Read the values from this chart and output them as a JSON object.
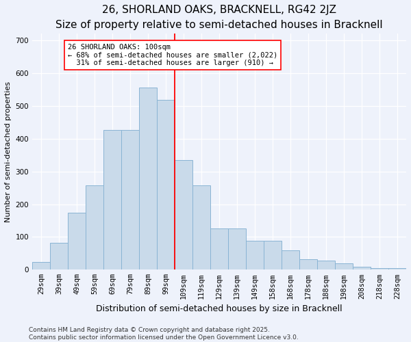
{
  "title1": "26, SHORLAND OAKS, BRACKNELL, RG42 2JZ",
  "title2": "Size of property relative to semi-detached houses in Bracknell",
  "xlabel": "Distribution of semi-detached houses by size in Bracknell",
  "ylabel": "Number of semi-detached properties",
  "categories": [
    "29sqm",
    "39sqm",
    "49sqm",
    "59sqm",
    "69sqm",
    "79sqm",
    "89sqm",
    "99sqm",
    "109sqm",
    "119sqm",
    "129sqm",
    "139sqm",
    "149sqm",
    "158sqm",
    "168sqm",
    "178sqm",
    "188sqm",
    "198sqm",
    "208sqm",
    "218sqm",
    "228sqm"
  ],
  "values": [
    23,
    83,
    175,
    257,
    427,
    427,
    557,
    519,
    335,
    257,
    126,
    126,
    88,
    88,
    60,
    33,
    27,
    20,
    10,
    5,
    5
  ],
  "bar_color": "#c9daea",
  "bar_edge_color": "#8ab4d4",
  "vline_color": "red",
  "vline_x_index": 7,
  "annotation_line1": "26 SHORLAND OAKS: 100sqm",
  "annotation_line2": "← 68% of semi-detached houses are smaller (2,022)",
  "annotation_line3": "  31% of semi-detached houses are larger (910) →",
  "annotation_box_color": "white",
  "annotation_box_edge": "red",
  "footer1": "Contains HM Land Registry data © Crown copyright and database right 2025.",
  "footer2": "Contains public sector information licensed under the Open Government Licence v3.0.",
  "bg_color": "#eef2fb",
  "ylim": [
    0,
    720
  ],
  "yticks": [
    0,
    100,
    200,
    300,
    400,
    500,
    600,
    700
  ],
  "title1_fontsize": 11,
  "title2_fontsize": 9.5,
  "xlabel_fontsize": 9,
  "ylabel_fontsize": 8,
  "tick_fontsize": 7.5,
  "annot_fontsize": 7.5,
  "footer_fontsize": 6.5
}
